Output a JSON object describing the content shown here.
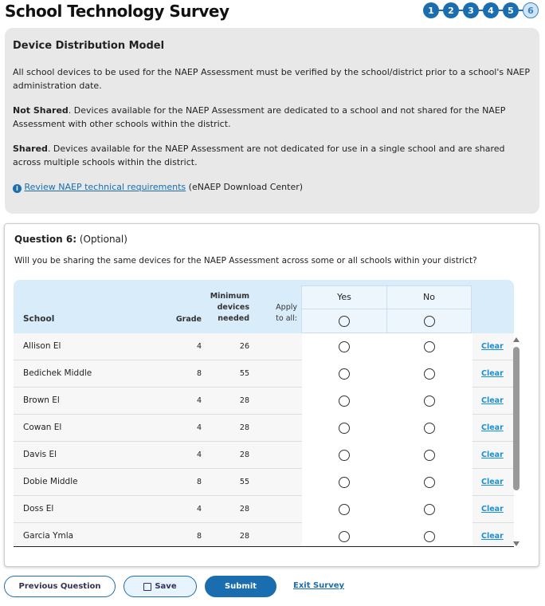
{
  "title": "School Technology Survey",
  "steps": [
    {
      "n": "1"
    },
    {
      "n": "2"
    },
    {
      "n": "3"
    },
    {
      "n": "4"
    },
    {
      "n": "5"
    },
    {
      "n": "6"
    }
  ],
  "current_step": "6",
  "info": {
    "heading": "Device Distribution Model",
    "p1": "All school devices to be used for the NAEP Assessment must be verified by the school/district prior to a school's NAEP administration date.",
    "not_shared_label": "Not Shared",
    "not_shared_text": ". Devices available for the NAEP Assessment are dedicated to a school and not shared for the NAEP Assessment with other schools within the district.",
    "shared_label": "Shared",
    "shared_text": ". Devices available for the NAEP Assessment are not dedicated for use in a single school and are shared across multiple schools within the district.",
    "link": "Review NAEP technical requirements",
    "link_suffix": " (eNAEP Download Center)"
  },
  "question": {
    "label": "Question 6:",
    "optional": " (Optional)",
    "text": "Will you be sharing the same devices for the NAEP Assessment across some or all schools within your district?"
  },
  "table": {
    "headers": {
      "school": "School",
      "grade": "Grade",
      "min1": "Minimum",
      "min2": "devices",
      "min3": "needed",
      "apply1": "Apply",
      "apply2": "to all:",
      "yes": "Yes",
      "no": "No"
    },
    "clear_label": "Clear",
    "rows": [
      {
        "school": "Allison El",
        "grade": "4",
        "min": "26"
      },
      {
        "school": "Bedichek Middle",
        "grade": "8",
        "min": "55"
      },
      {
        "school": "Brown El",
        "grade": "4",
        "min": "28"
      },
      {
        "school": "Cowan El",
        "grade": "4",
        "min": "28"
      },
      {
        "school": "Davis El",
        "grade": "4",
        "min": "28"
      },
      {
        "school": "Dobie Middle",
        "grade": "8",
        "min": "55"
      },
      {
        "school": "Doss El",
        "grade": "4",
        "min": "28"
      },
      {
        "school": "Garcia Ymla",
        "grade": "8",
        "min": "28"
      }
    ]
  },
  "buttons": {
    "prev": "Previous Question",
    "save": "Save",
    "submit": "Submit",
    "exit": "Exit Survey"
  }
}
